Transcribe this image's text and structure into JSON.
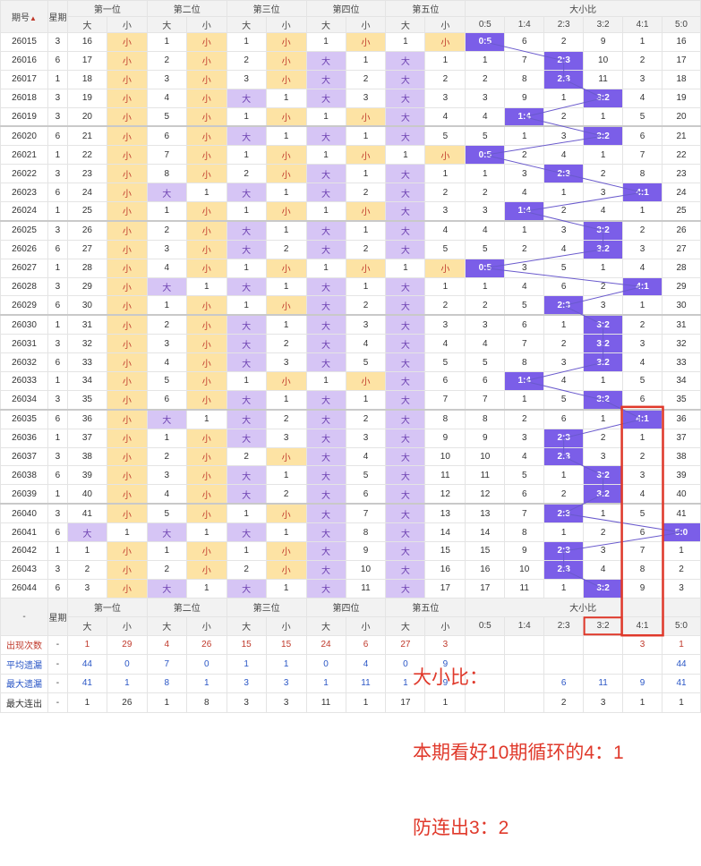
{
  "header": {
    "issue": "期号",
    "week": "星期",
    "groups": [
      "第一位",
      "第二位",
      "第三位",
      "第四位",
      "第五位"
    ],
    "ratio_group": "大小比",
    "big": "大",
    "small": "小",
    "ratios": [
      "0:5",
      "1:4",
      "2:3",
      "3:2",
      "4:1",
      "5:0"
    ],
    "dash": "-"
  },
  "chart_data": {
    "type": "table",
    "columns": [
      "期号",
      "星期",
      "第一位",
      "第二位",
      "第三位",
      "第四位",
      "第五位",
      "大小比"
    ],
    "ratio_categories": [
      "0:5",
      "1:4",
      "2:3",
      "3:2",
      "4:1",
      "5:0"
    ],
    "rows": [
      {
        "issue": "26015",
        "week": "3",
        "d": [
          [
            16,
            "小"
          ],
          [
            1,
            "小"
          ],
          [
            1,
            "小"
          ],
          [
            1,
            "小"
          ],
          [
            1,
            "小"
          ]
        ],
        "r": [
          0,
          6,
          2,
          9,
          1,
          16
        ],
        "h": 0
      },
      {
        "issue": "26016",
        "week": "6",
        "d": [
          [
            17,
            "小"
          ],
          [
            2,
            "小"
          ],
          [
            2,
            "小"
          ],
          [
            "大",
            1
          ],
          [
            "大",
            1
          ]
        ],
        "r": [
          1,
          7,
          2,
          10,
          2,
          17
        ],
        "h": 2
      },
      {
        "issue": "26017",
        "week": "1",
        "d": [
          [
            18,
            "小"
          ],
          [
            3,
            "小"
          ],
          [
            3,
            "小"
          ],
          [
            "大",
            2
          ],
          [
            "大",
            2
          ]
        ],
        "r": [
          2,
          8,
          2,
          11,
          3,
          18
        ],
        "h": 2
      },
      {
        "issue": "26018",
        "week": "3",
        "d": [
          [
            19,
            "小"
          ],
          [
            4,
            "小"
          ],
          [
            "大",
            1
          ],
          [
            "大",
            3
          ],
          [
            "大",
            3
          ]
        ],
        "r": [
          3,
          9,
          1,
          3,
          4,
          19
        ],
        "h": 3
      },
      {
        "issue": "26019",
        "week": "3",
        "d": [
          [
            20,
            "小"
          ],
          [
            5,
            "小"
          ],
          [
            1,
            "小"
          ],
          [
            1,
            "小"
          ],
          [
            "大",
            4
          ]
        ],
        "r": [
          4,
          1,
          2,
          1,
          5,
          20
        ],
        "h": 1
      },
      {
        "issue": "26020",
        "week": "6",
        "d": [
          [
            21,
            "小"
          ],
          [
            6,
            "小"
          ],
          [
            "大",
            1
          ],
          [
            "大",
            1
          ],
          [
            "大",
            5
          ]
        ],
        "r": [
          5,
          1,
          3,
          3,
          6,
          21
        ],
        "h": 3
      },
      {
        "issue": "26021",
        "week": "1",
        "d": [
          [
            22,
            "小"
          ],
          [
            7,
            "小"
          ],
          [
            1,
            "小"
          ],
          [
            1,
            "小"
          ],
          [
            1,
            "小"
          ]
        ],
        "r": [
          0,
          2,
          4,
          1,
          7,
          22
        ],
        "h": 0
      },
      {
        "issue": "26022",
        "week": "3",
        "d": [
          [
            23,
            "小"
          ],
          [
            8,
            "小"
          ],
          [
            2,
            "小"
          ],
          [
            "大",
            1
          ],
          [
            "大",
            1
          ]
        ],
        "r": [
          1,
          3,
          2,
          2,
          8,
          23
        ],
        "h": 2
      },
      {
        "issue": "26023",
        "week": "6",
        "d": [
          [
            24,
            "小"
          ],
          [
            "大",
            1
          ],
          [
            "大",
            1
          ],
          [
            "大",
            2
          ],
          [
            "大",
            2
          ]
        ],
        "r": [
          2,
          4,
          1,
          3,
          4,
          24
        ],
        "h": 4
      },
      {
        "issue": "26024",
        "week": "1",
        "d": [
          [
            25,
            "小"
          ],
          [
            1,
            "小"
          ],
          [
            1,
            "小"
          ],
          [
            1,
            "小"
          ],
          [
            "大",
            3
          ]
        ],
        "r": [
          3,
          1,
          2,
          4,
          1,
          25
        ],
        "h": 1
      },
      {
        "issue": "26025",
        "week": "3",
        "d": [
          [
            26,
            "小"
          ],
          [
            2,
            "小"
          ],
          [
            "大",
            1
          ],
          [
            "大",
            1
          ],
          [
            "大",
            4
          ]
        ],
        "r": [
          4,
          1,
          3,
          3,
          2,
          26
        ],
        "h": 3
      },
      {
        "issue": "26026",
        "week": "6",
        "d": [
          [
            27,
            "小"
          ],
          [
            3,
            "小"
          ],
          [
            "大",
            2
          ],
          [
            "大",
            2
          ],
          [
            "大",
            5
          ]
        ],
        "r": [
          5,
          2,
          4,
          3,
          3,
          27
        ],
        "h": 3
      },
      {
        "issue": "26027",
        "week": "1",
        "d": [
          [
            28,
            "小"
          ],
          [
            4,
            "小"
          ],
          [
            1,
            "小"
          ],
          [
            1,
            "小"
          ],
          [
            1,
            "小"
          ]
        ],
        "r": [
          0,
          3,
          5,
          1,
          4,
          28
        ],
        "h": 0
      },
      {
        "issue": "26028",
        "week": "3",
        "d": [
          [
            29,
            "小"
          ],
          [
            "大",
            1
          ],
          [
            "大",
            1
          ],
          [
            "大",
            1
          ],
          [
            "大",
            1
          ]
        ],
        "r": [
          1,
          4,
          6,
          2,
          4,
          29
        ],
        "h": 4
      },
      {
        "issue": "26029",
        "week": "6",
        "d": [
          [
            30,
            "小"
          ],
          [
            1,
            "小"
          ],
          [
            1,
            "小"
          ],
          [
            "大",
            2
          ],
          [
            "大",
            2
          ]
        ],
        "r": [
          2,
          5,
          2,
          3,
          1,
          30
        ],
        "h": 2
      },
      {
        "issue": "26030",
        "week": "1",
        "d": [
          [
            31,
            "小"
          ],
          [
            2,
            "小"
          ],
          [
            "大",
            1
          ],
          [
            "大",
            3
          ],
          [
            "大",
            3
          ]
        ],
        "r": [
          3,
          6,
          1,
          3,
          2,
          31
        ],
        "h": 3
      },
      {
        "issue": "26031",
        "week": "3",
        "d": [
          [
            32,
            "小"
          ],
          [
            3,
            "小"
          ],
          [
            "大",
            2
          ],
          [
            "大",
            4
          ],
          [
            "大",
            4
          ]
        ],
        "r": [
          4,
          7,
          2,
          3,
          3,
          32
        ],
        "h": 3
      },
      {
        "issue": "26032",
        "week": "6",
        "d": [
          [
            33,
            "小"
          ],
          [
            4,
            "小"
          ],
          [
            "大",
            3
          ],
          [
            "大",
            5
          ],
          [
            "大",
            5
          ]
        ],
        "r": [
          5,
          8,
          3,
          3,
          4,
          33
        ],
        "h": 3
      },
      {
        "issue": "26033",
        "week": "1",
        "d": [
          [
            34,
            "小"
          ],
          [
            5,
            "小"
          ],
          [
            1,
            "小"
          ],
          [
            1,
            "小"
          ],
          [
            "大",
            6
          ]
        ],
        "r": [
          6,
          1,
          4,
          1,
          5,
          34
        ],
        "h": 1
      },
      {
        "issue": "26034",
        "week": "3",
        "d": [
          [
            35,
            "小"
          ],
          [
            6,
            "小"
          ],
          [
            "大",
            1
          ],
          [
            "大",
            1
          ],
          [
            "大",
            7
          ]
        ],
        "r": [
          7,
          1,
          5,
          3,
          6,
          35
        ],
        "h": 3
      },
      {
        "issue": "26035",
        "week": "6",
        "d": [
          [
            36,
            "小"
          ],
          [
            "大",
            1
          ],
          [
            "大",
            2
          ],
          [
            "大",
            2
          ],
          [
            "大",
            8
          ]
        ],
        "r": [
          8,
          2,
          6,
          1,
          4,
          36
        ],
        "h": 4
      },
      {
        "issue": "26036",
        "week": "1",
        "d": [
          [
            37,
            "小"
          ],
          [
            1,
            "小"
          ],
          [
            "大",
            3
          ],
          [
            "大",
            3
          ],
          [
            "大",
            9
          ]
        ],
        "r": [
          9,
          3,
          2,
          2,
          1,
          37
        ],
        "h": 2
      },
      {
        "issue": "26037",
        "week": "3",
        "d": [
          [
            38,
            "小"
          ],
          [
            2,
            "小"
          ],
          [
            2,
            "小"
          ],
          [
            "大",
            4
          ],
          [
            "大",
            10
          ]
        ],
        "r": [
          10,
          4,
          2,
          3,
          2,
          38
        ],
        "h": 2
      },
      {
        "issue": "26038",
        "week": "6",
        "d": [
          [
            39,
            "小"
          ],
          [
            3,
            "小"
          ],
          [
            "大",
            1
          ],
          [
            "大",
            5
          ],
          [
            "大",
            11
          ]
        ],
        "r": [
          11,
          5,
          1,
          3,
          3,
          39
        ],
        "h": 3
      },
      {
        "issue": "26039",
        "week": "1",
        "d": [
          [
            40,
            "小"
          ],
          [
            4,
            "小"
          ],
          [
            "大",
            2
          ],
          [
            "大",
            6
          ],
          [
            "大",
            12
          ]
        ],
        "r": [
          12,
          6,
          2,
          3,
          4,
          40
        ],
        "h": 3
      },
      {
        "issue": "26040",
        "week": "3",
        "d": [
          [
            41,
            "小"
          ],
          [
            5,
            "小"
          ],
          [
            1,
            "小"
          ],
          [
            "大",
            7
          ],
          [
            "大",
            13
          ]
        ],
        "r": [
          13,
          7,
          2,
          1,
          5,
          41
        ],
        "h": 2
      },
      {
        "issue": "26041",
        "week": "6",
        "d": [
          [
            "大",
            1
          ],
          [
            "大",
            1
          ],
          [
            "大",
            1
          ],
          [
            "大",
            8
          ],
          [
            "大",
            14
          ]
        ],
        "r": [
          14,
          8,
          1,
          2,
          6,
          5
        ],
        "h": 5
      },
      {
        "issue": "26042",
        "week": "1",
        "d": [
          [
            1,
            "小"
          ],
          [
            1,
            "小"
          ],
          [
            1,
            "小"
          ],
          [
            "大",
            9
          ],
          [
            "大",
            15
          ]
        ],
        "r": [
          15,
          9,
          2,
          3,
          7,
          1
        ],
        "h": 2
      },
      {
        "issue": "26043",
        "week": "3",
        "d": [
          [
            2,
            "小"
          ],
          [
            2,
            "小"
          ],
          [
            2,
            "小"
          ],
          [
            "大",
            10
          ],
          [
            "大",
            16
          ]
        ],
        "r": [
          16,
          10,
          2,
          4,
          8,
          2
        ],
        "h": 2
      },
      {
        "issue": "26044",
        "week": "6",
        "d": [
          [
            3,
            "小"
          ],
          [
            "大",
            1
          ],
          [
            "大",
            1
          ],
          [
            "大",
            11
          ],
          [
            "大",
            17
          ]
        ],
        "r": [
          17,
          11,
          1,
          3,
          9,
          3
        ],
        "h": 3
      }
    ],
    "stats": [
      {
        "label": "出现次数",
        "color": "r",
        "digits": [
          "1",
          "29",
          "4",
          "26",
          "15",
          "15",
          "24",
          "6",
          "27",
          "3"
        ],
        "ratios": [
          "",
          "",
          "",
          "",
          "3",
          "1"
        ]
      },
      {
        "label": "平均遗漏",
        "color": "b",
        "digits": [
          "44",
          "0",
          "7",
          "0",
          "1",
          "1",
          "0",
          "4",
          "0",
          "9"
        ],
        "ratios": [
          "",
          "",
          "",
          "",
          "",
          "44"
        ]
      },
      {
        "label": "最大遗漏",
        "color": "b",
        "digits": [
          "41",
          "1",
          "8",
          "1",
          "3",
          "3",
          "1",
          "11",
          "1",
          "9"
        ],
        "ratios": [
          "",
          "",
          "6",
          "11",
          "9",
          "41"
        ]
      },
      {
        "label": "最大连出",
        "color": "k",
        "digits": [
          "1",
          "26",
          "1",
          "8",
          "3",
          "3",
          "11",
          "1",
          "17",
          "1"
        ],
        "ratios": [
          "",
          "",
          "2",
          "3",
          "1",
          "1"
        ]
      }
    ]
  },
  "annotation": {
    "lines": [
      "大小比：",
      "本期看好10期循环的4：1",
      "防连出3：2"
    ]
  },
  "colors": {
    "big_bg": "#d6c5f5",
    "small_bg": "#fde3a4",
    "hit": "#7b5ee8",
    "line": "#6a5acd",
    "frame": "#e0392b"
  }
}
